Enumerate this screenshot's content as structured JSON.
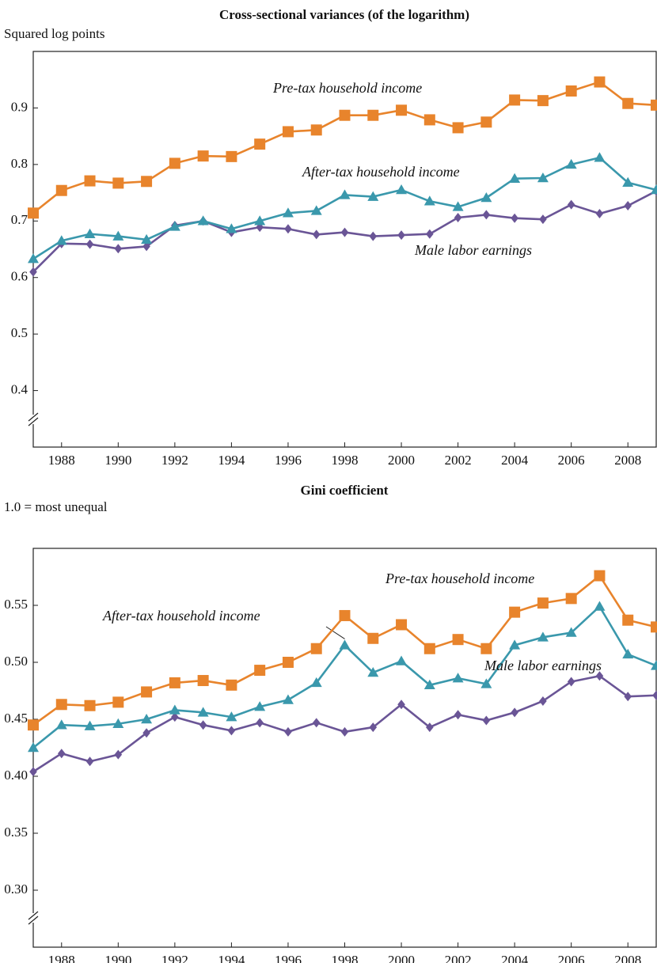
{
  "chart_data": [
    {
      "type": "line",
      "title": "Cross-sectional variances (of the logarithm)",
      "y_label": "Squared log points",
      "x": [
        1987,
        1988,
        1989,
        1990,
        1991,
        1992,
        1993,
        1994,
        1995,
        1996,
        1997,
        1998,
        1999,
        2000,
        2001,
        2002,
        2003,
        2004,
        2005,
        2006,
        2007,
        2008,
        2009
      ],
      "xlim": [
        1987,
        2009
      ],
      "xticks": [
        1988,
        1990,
        1992,
        1994,
        1996,
        1998,
        2000,
        2002,
        2004,
        2006,
        2008
      ],
      "ylim": [
        0.3,
        1.0
      ],
      "yticks": [
        0.4,
        0.5,
        0.6,
        0.7,
        0.8,
        0.9
      ],
      "series": [
        {
          "name": "Pre-tax household income",
          "color": "#e8842c",
          "marker": "square",
          "values": [
            0.714,
            0.754,
            0.771,
            0.767,
            0.77,
            0.802,
            0.815,
            0.814,
            0.836,
            0.858,
            0.861,
            0.887,
            0.887,
            0.896,
            0.879,
            0.865,
            0.875,
            0.914,
            0.913,
            0.93,
            0.946,
            0.908,
            0.905
          ]
        },
        {
          "name": "After-tax household income",
          "color": "#3a98ac",
          "marker": "triangle",
          "values": [
            0.633,
            0.665,
            0.677,
            0.673,
            0.667,
            0.69,
            0.7,
            0.686,
            0.7,
            0.714,
            0.718,
            0.746,
            0.743,
            0.755,
            0.735,
            0.725,
            0.741,
            0.775,
            0.776,
            0.8,
            0.812,
            0.768,
            0.755
          ]
        },
        {
          "name": "Male labor earnings",
          "color": "#6a5596",
          "marker": "diamond",
          "values": [
            0.61,
            0.66,
            0.659,
            0.651,
            0.655,
            0.692,
            0.7,
            0.68,
            0.689,
            0.686,
            0.676,
            0.68,
            0.673,
            0.675,
            0.677,
            0.706,
            0.711,
            0.705,
            0.703,
            0.729,
            0.713,
            0.727,
            0.753
          ]
        }
      ]
    },
    {
      "type": "line",
      "title": "Gini coefficient",
      "y_label": "1.0 = most unequal",
      "x": [
        1987,
        1988,
        1989,
        1990,
        1991,
        1992,
        1993,
        1994,
        1995,
        1996,
        1997,
        1998,
        1999,
        2000,
        2001,
        2002,
        2003,
        2004,
        2005,
        2006,
        2007,
        2008,
        2009
      ],
      "xlim": [
        1987,
        2009
      ],
      "xticks": [
        1988,
        1990,
        1992,
        1994,
        1996,
        1998,
        2000,
        2002,
        2004,
        2006,
        2008
      ],
      "ylim": [
        0.25,
        0.6
      ],
      "yticks": [
        {
          "value": 0.3,
          "label": "0.30"
        },
        0.35,
        {
          "value": 0.4,
          "label": "0.40"
        },
        0.45,
        {
          "value": 0.5,
          "label": "0.50"
        },
        0.55
      ],
      "series": [
        {
          "name": "Pre-tax household income",
          "color": "#e8842c",
          "marker": "square",
          "values": [
            0.445,
            0.463,
            0.462,
            0.465,
            0.474,
            0.482,
            0.484,
            0.48,
            0.493,
            0.5,
            0.512,
            0.541,
            0.521,
            0.533,
            0.512,
            0.52,
            0.512,
            0.544,
            0.552,
            0.556,
            0.576,
            0.537,
            0.531
          ]
        },
        {
          "name": "After-tax household income",
          "color": "#3a98ac",
          "marker": "triangle",
          "values": [
            0.425,
            0.445,
            0.444,
            0.446,
            0.45,
            0.458,
            0.456,
            0.452,
            0.461,
            0.467,
            0.482,
            0.515,
            0.491,
            0.501,
            0.48,
            0.486,
            0.481,
            0.515,
            0.522,
            0.526,
            0.549,
            0.507,
            0.497
          ]
        },
        {
          "name": "Male labor earnings",
          "color": "#6a5596",
          "marker": "diamond",
          "values": [
            0.404,
            0.42,
            0.413,
            0.419,
            0.438,
            0.452,
            0.445,
            0.44,
            0.447,
            0.439,
            0.447,
            0.439,
            0.443,
            0.463,
            0.443,
            0.454,
            0.449,
            0.456,
            0.466,
            0.483,
            0.488,
            0.47,
            0.471
          ]
        }
      ]
    }
  ]
}
